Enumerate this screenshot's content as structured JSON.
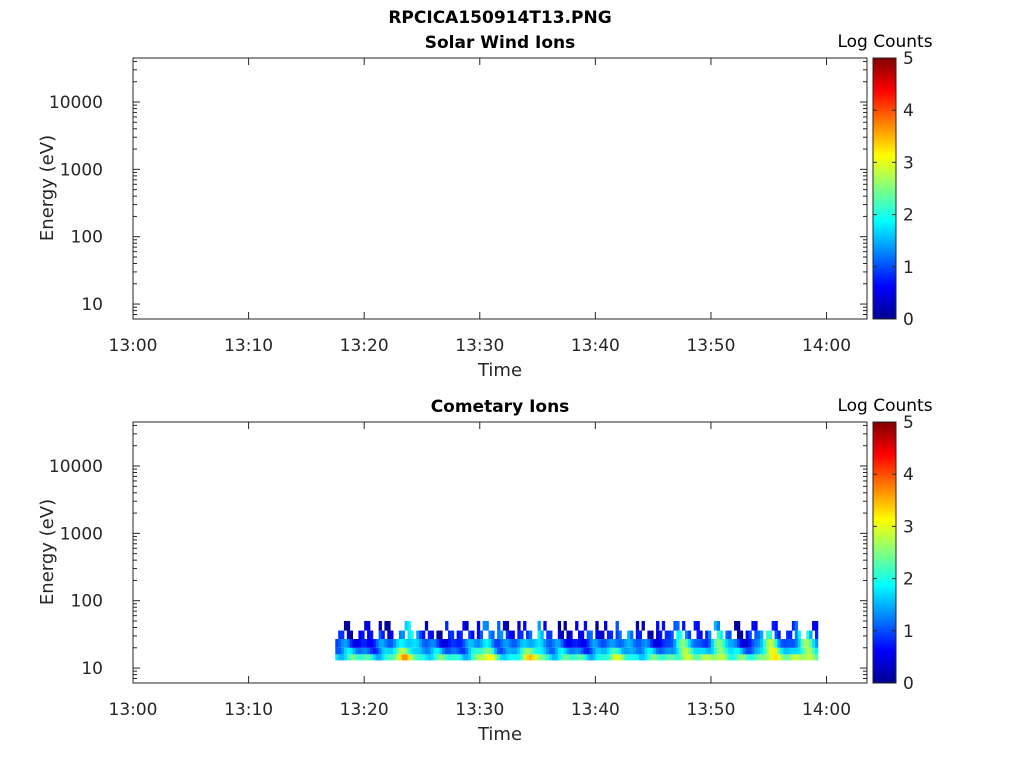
{
  "page_title": "RPCICA150914T13.PNG",
  "colors": {
    "colormap": [
      "#00008f",
      "#0000ff",
      "#0080ff",
      "#00ffff",
      "#80ff80",
      "#ffff00",
      "#ff8000",
      "#ff0000",
      "#800000"
    ],
    "axis": "#262626"
  },
  "chart_data": [
    {
      "type": "heatmap",
      "title": "Solar Wind Ions",
      "xlabel": "Time",
      "ylabel": "Energy (eV)",
      "x_ticks": [
        "13:00",
        "13:10",
        "13:20",
        "13:30",
        "13:40",
        "13:50",
        "14:00"
      ],
      "xlim_minutes": [
        0,
        63.5
      ],
      "y_scale": "log",
      "ylim": [
        6,
        45000
      ],
      "y_ticks": [
        10,
        100,
        1000,
        10000
      ],
      "y_tick_labels": [
        "10",
        "100",
        "1000",
        "10000"
      ],
      "colorbar": {
        "label": "Log Counts",
        "range": [
          0,
          5
        ],
        "ticks": [
          "0",
          "1",
          "2",
          "3",
          "4",
          "5"
        ]
      },
      "data": []
    },
    {
      "type": "heatmap",
      "title": "Cometary Ions",
      "xlabel": "Time",
      "ylabel": "Energy (eV)",
      "x_ticks": [
        "13:00",
        "13:10",
        "13:20",
        "13:30",
        "13:40",
        "13:50",
        "14:00"
      ],
      "xlim_minutes": [
        0,
        63.5
      ],
      "y_scale": "log",
      "ylim": [
        6,
        45000
      ],
      "y_ticks": [
        10,
        100,
        1000,
        10000
      ],
      "y_tick_labels": [
        "10",
        "100",
        "1000",
        "10000"
      ],
      "colorbar": {
        "label": "Log Counts",
        "range": [
          0,
          5
        ],
        "ticks": [
          "0",
          "1",
          "2",
          "3",
          "4",
          "5"
        ]
      },
      "data_time_range_minutes": [
        17.5,
        59.2
      ],
      "energy_bands": [
        {
          "e_low": 13,
          "e_high": 16,
          "value": 2.0,
          "time_start": 17.5,
          "time_end": 59.2
        },
        {
          "e_low": 16,
          "e_high": 20,
          "value": 1.3,
          "time_start": 17.5,
          "time_end": 59.2
        },
        {
          "e_low": 20,
          "e_high": 27,
          "value": 0.9,
          "time_start": 17.5,
          "time_end": 59.2
        },
        {
          "e_low": 27,
          "e_high": 36,
          "value": 0.6,
          "time_start": 17.5,
          "time_end": 59.2
        },
        {
          "e_low": 36,
          "e_high": 50,
          "value": 0.3,
          "time_start": 17.5,
          "time_end": 59.2
        }
      ],
      "enhancements": [
        {
          "time_center": 23.5,
          "value": 2.2
        },
        {
          "time_center": 30.5,
          "value": 1.8
        },
        {
          "time_center": 34.5,
          "value": 2.0
        },
        {
          "time_center": 42.0,
          "value": 1.5
        },
        {
          "time_center": 47.5,
          "value": 1.9
        },
        {
          "time_center": 50.5,
          "value": 2.1
        },
        {
          "time_center": 55.0,
          "value": 2.3
        },
        {
          "time_center": 58.0,
          "value": 2.2
        }
      ]
    }
  ]
}
